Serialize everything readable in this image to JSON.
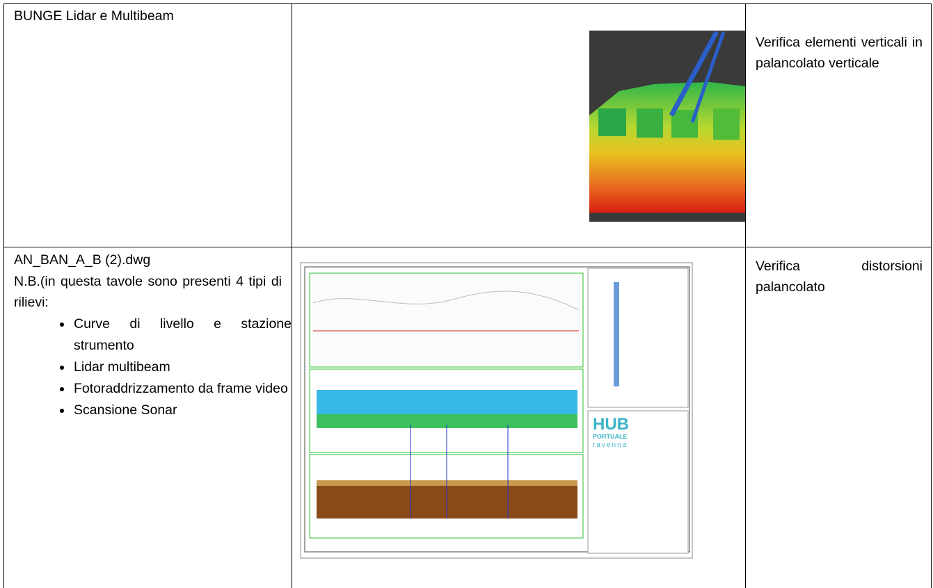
{
  "table": {
    "rows": [
      {
        "source": "BUNGE Lidar e Multibeam",
        "purpose": "Verifica elementi verticali in palancolato verticale"
      },
      {
        "source": "AN_BAN_A_B (2).dwg",
        "note": "N.B.(in questa tavole sono presenti 4 tipi di rilievi:",
        "items": [
          "Curve di livello e stazione strumento",
          "Lidar multibeam",
          "Fotoraddrizzamento da frame video",
          "Scansione Sonar"
        ],
        "image_labels": [
          "HUB",
          "PORTUALE",
          "ravenna"
        ],
        "purpose": "Verifica distorsioni palancolato"
      }
    ]
  }
}
